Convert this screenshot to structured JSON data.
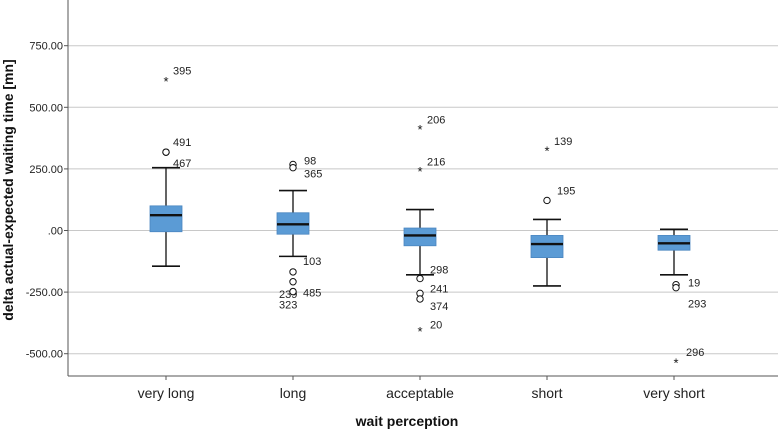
{
  "chart_data": {
    "type": "boxplot",
    "title": "",
    "xlabel": "wait perception",
    "ylabel": "delta actual-expected waiting time [mn]",
    "ylim": [
      -600,
      900
    ],
    "yticks": [
      -500,
      -250,
      0,
      250,
      500,
      750
    ],
    "ytick_labels": [
      "-500.00",
      "-250.00",
      ".00",
      "250.00",
      "500.00",
      "750.00"
    ],
    "grid": true,
    "box_color": "#5b9bd5",
    "categories": [
      "very long",
      "long",
      "acceptable",
      "short",
      "very short"
    ],
    "boxes": [
      {
        "category": "very long",
        "whisker_low": -145,
        "q1": -5,
        "median": 62,
        "q3": 100,
        "whisker_high": 255
      },
      {
        "category": "long",
        "whisker_low": -105,
        "q1": -15,
        "median": 25,
        "q3": 72,
        "whisker_high": 162
      },
      {
        "category": "acceptable",
        "whisker_low": -180,
        "q1": -62,
        "median": -20,
        "q3": 10,
        "whisker_high": 85
      },
      {
        "category": "short",
        "whisker_low": -225,
        "q1": -110,
        "median": -55,
        "q3": -20,
        "whisker_high": 45
      },
      {
        "category": "very short",
        "whisker_low": -180,
        "q1": -80,
        "median": -52,
        "q3": -20,
        "whisker_high": 5
      }
    ],
    "outliers": [
      {
        "category": "very long",
        "value": 605,
        "marker": "star",
        "label": "395"
      },
      {
        "category": "very long",
        "value": 318,
        "marker": "circle",
        "label": "491"
      },
      {
        "category": "very long",
        "value": 318,
        "marker": "circle",
        "label": "467"
      },
      {
        "category": "long",
        "value": 268,
        "marker": "circle",
        "label": "98"
      },
      {
        "category": "long",
        "value": 255,
        "marker": "circle",
        "label": "365"
      },
      {
        "category": "long",
        "value": -168,
        "marker": "circle",
        "label": "103"
      },
      {
        "category": "long",
        "value": -208,
        "marker": "circle",
        "label": "239"
      },
      {
        "category": "long",
        "value": -248,
        "marker": "circle",
        "label": "485"
      },
      {
        "category": "long",
        "value": -248,
        "marker": "circle",
        "label": "323"
      },
      {
        "category": "acceptable",
        "value": 410,
        "marker": "star",
        "label": "206"
      },
      {
        "category": "acceptable",
        "value": 240,
        "marker": "star",
        "label": "216"
      },
      {
        "category": "acceptable",
        "value": -195,
        "marker": "circle",
        "label": "298"
      },
      {
        "category": "acceptable",
        "value": -255,
        "marker": "circle",
        "label": "241"
      },
      {
        "category": "acceptable",
        "value": -278,
        "marker": "circle",
        "label": "374"
      },
      {
        "category": "acceptable",
        "value": -410,
        "marker": "star",
        "label": "20"
      },
      {
        "category": "short",
        "value": 322,
        "marker": "star",
        "label": "139"
      },
      {
        "category": "short",
        "value": 122,
        "marker": "circle",
        "label": "195"
      },
      {
        "category": "very short",
        "value": -220,
        "marker": "circle",
        "label": "19"
      },
      {
        "category": "very short",
        "value": -232,
        "marker": "circle",
        "label": "293"
      },
      {
        "category": "very short",
        "value": -538,
        "marker": "star",
        "label": "296"
      }
    ]
  }
}
